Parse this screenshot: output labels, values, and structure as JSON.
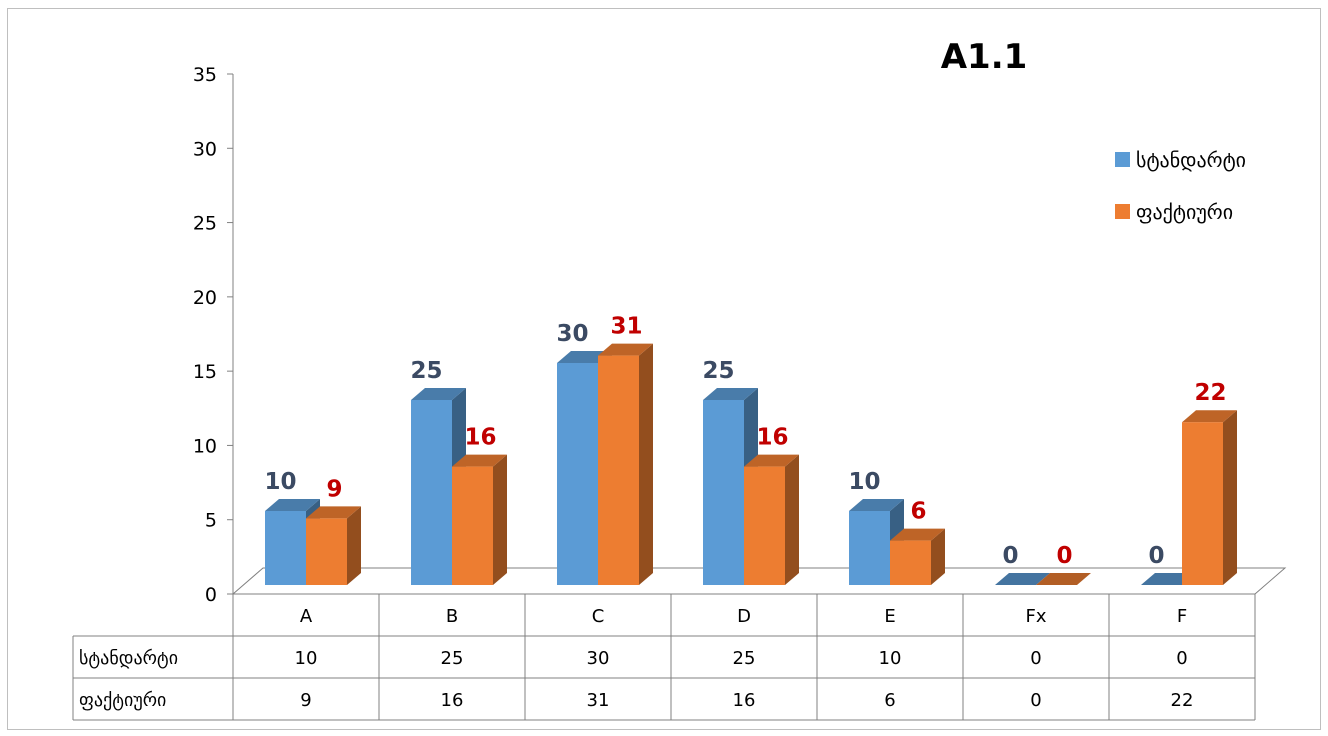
{
  "chart_data": {
    "type": "bar",
    "title": "A1.1",
    "categories": [
      "A",
      "B",
      "C",
      "D",
      "E",
      "Fx",
      "F"
    ],
    "series": [
      {
        "name": "სტანდარტი",
        "values": [
          10,
          25,
          30,
          25,
          10,
          0,
          0
        ],
        "color": "#5b9bd5"
      },
      {
        "name": "ფაქტიური",
        "values": [
          9,
          16,
          31,
          16,
          6,
          0,
          22
        ],
        "color": "#ed7d31"
      }
    ],
    "ylim": [
      0,
      35
    ],
    "yticks": [
      0,
      5,
      10,
      15,
      20,
      25,
      30,
      35
    ],
    "legend_position": "right",
    "data_table": true,
    "grid": false
  }
}
